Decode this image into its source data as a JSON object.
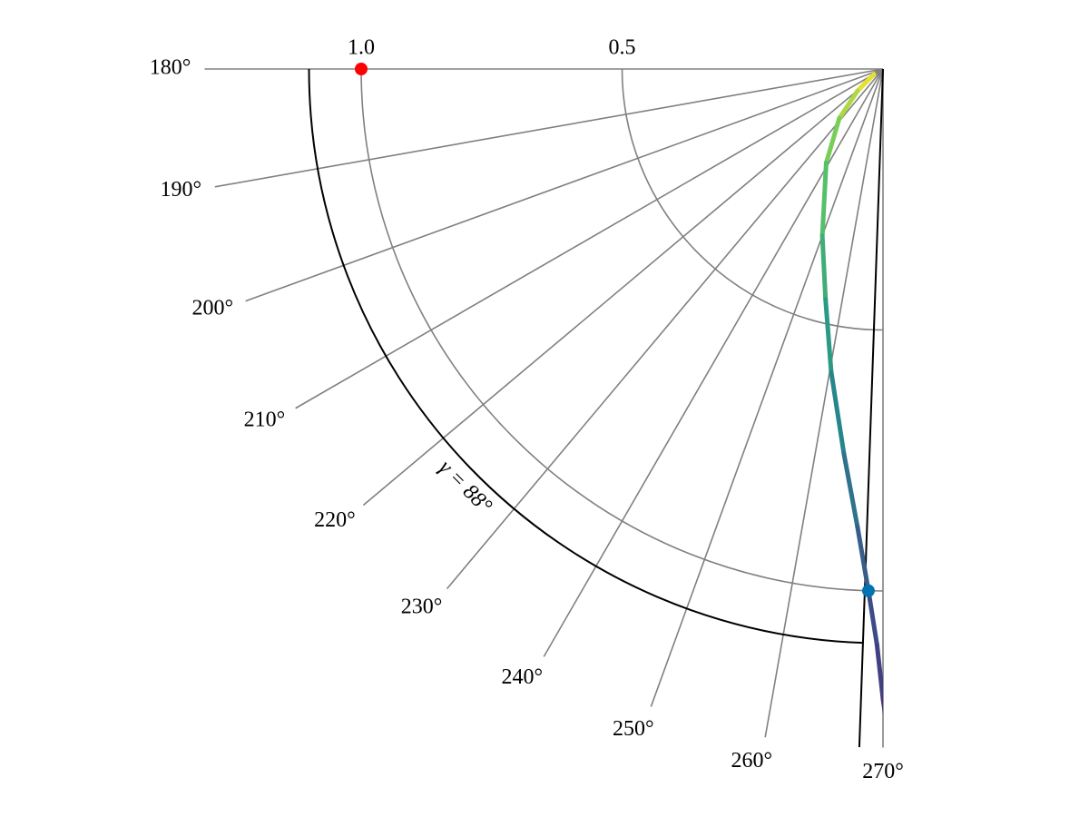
{
  "chart_data": {
    "type": "polar",
    "rlim": [
      0,
      1.3
    ],
    "rticks": [
      0.5,
      {
        "value": 1,
        "label": "1.0"
      }
    ],
    "thetalim": [
      180,
      270
    ],
    "thetaticks": [
      {
        "value": 180,
        "label": "180°"
      },
      {
        "value": 190,
        "label": "190°"
      },
      {
        "value": 200,
        "label": "200°"
      },
      {
        "value": 210,
        "label": "210°"
      },
      {
        "value": 220,
        "label": "220°"
      },
      {
        "value": 230,
        "label": "230°"
      },
      {
        "value": 240,
        "label": "240°"
      },
      {
        "value": 250,
        "label": "250°"
      },
      {
        "value": 260,
        "label": "260°"
      },
      {
        "value": 270,
        "label": "270°"
      }
    ],
    "grid": true,
    "series": [
      {
        "r": [
          0.02,
          0.064,
          0.126,
          0.21,
          0.34,
          0.455,
          0.589,
          0.741,
          0.878,
          1.0,
          1.103,
          1.207,
          1.3
        ],
        "theta": [
          210,
          220.6,
          228.4,
          238.8,
          250,
          256,
          260.3,
          264.2,
          266.8,
          268.4,
          269.4,
          270,
          270.6
        ],
        "colormap": [
          "#fde725",
          "#5ec962",
          "#21918c",
          "#3b528b",
          "#472d7b"
        ]
      }
    ],
    "points": [
      {
        "r": 1,
        "theta": 180,
        "color": "#ff0000"
      },
      {
        "r": 1,
        "theta": 268.4,
        "color": "#0072b2"
      }
    ],
    "arc": {
      "r": 1.1,
      "theta": [
        180,
        268
      ],
      "label": "γ = 88°",
      "color": "#000000"
    }
  }
}
